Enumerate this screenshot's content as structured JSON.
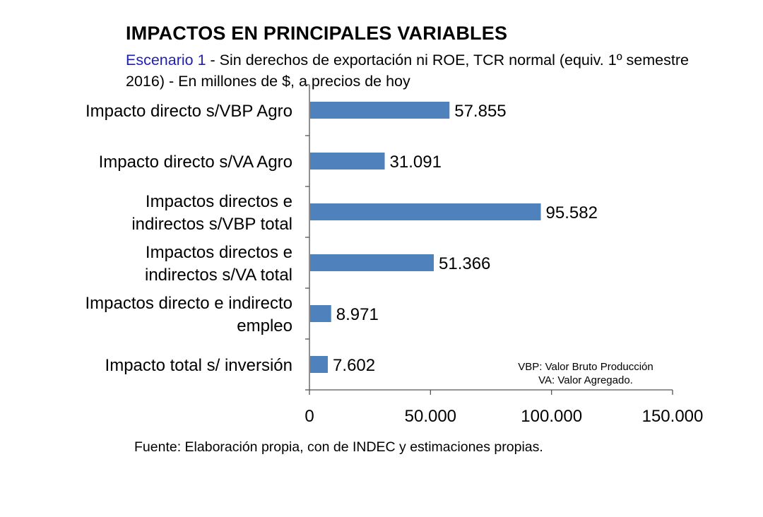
{
  "chart_data": {
    "type": "bar",
    "orientation": "horizontal",
    "title": "IMPACTOS EN PRINCIPALES VARIABLES",
    "subtitle_scenario": "Escenario 1",
    "subtitle_rest": " - Sin derechos de exportación ni ROE, TCR normal (equiv. 1º semestre 2016) - En millones de $, a precios de hoy",
    "categories": [
      [
        "Impacto directo s/VBP Agro"
      ],
      [
        "Impacto directo s/VA Agro"
      ],
      [
        "Impactos directos e",
        "indirectos s/VBP total"
      ],
      [
        "Impactos directos e",
        "indirectos s/VA total"
      ],
      [
        "Impactos directo e indirecto",
        "empleo"
      ],
      [
        "Impacto total s/ inversión"
      ]
    ],
    "values": [
      57855,
      31091,
      95582,
      51366,
      8971,
      7602
    ],
    "value_labels": [
      "57.855",
      "31.091",
      "95.582",
      "51.366",
      "8.971",
      "7.602"
    ],
    "xlim": [
      0,
      150000
    ],
    "xticks": [
      0,
      50000,
      100000,
      150000
    ],
    "xtick_labels": [
      "0",
      "50.000",
      "100.000",
      "150.000"
    ],
    "bar_color": "#4f81bd",
    "legend_note": [
      "VBP: Valor Bruto Producción",
      "VA: Valor Agregado."
    ],
    "source": "Fuente: Elaboración propia, con de INDEC y estimaciones propias."
  }
}
